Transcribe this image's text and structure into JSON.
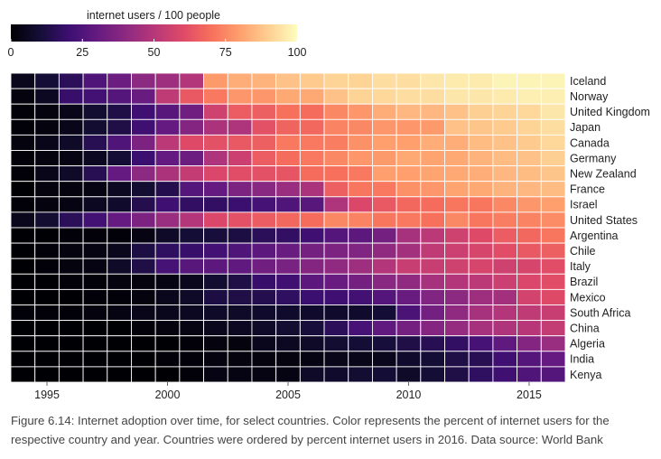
{
  "chart_data": {
    "type": "heatmap",
    "title": "",
    "xlabel": "",
    "ylabel": "",
    "years": [
      1994,
      1995,
      1996,
      1997,
      1998,
      1999,
      2000,
      2001,
      2002,
      2003,
      2004,
      2005,
      2006,
      2007,
      2008,
      2009,
      2010,
      2011,
      2012,
      2013,
      2014,
      2015,
      2016
    ],
    "x_ticks": [
      1995,
      2000,
      2005,
      2010,
      2015
    ],
    "color_scale": {
      "title": "internet users / 100 people",
      "min": 0,
      "max": 100,
      "ticks": [
        0,
        25,
        50,
        75,
        100
      ],
      "palette": "magma"
    },
    "rows": [
      {
        "country": "Iceland",
        "values": [
          5,
          10,
          16,
          25,
          32,
          40,
          44,
          49,
          79,
          83,
          84,
          87,
          89,
          91,
          91,
          93,
          93,
          95,
          96,
          96,
          98,
          98,
          98
        ]
      },
      {
        "country": "Norway",
        "values": [
          2,
          6,
          19,
          22,
          26,
          31,
          52,
          64,
          72,
          78,
          78,
          82,
          82,
          87,
          91,
          92,
          93,
          93,
          95,
          95,
          96,
          97,
          97
        ]
      },
      {
        "country": "United Kingdom",
        "values": [
          1,
          2,
          4,
          9,
          13,
          21,
          27,
          33,
          56,
          65,
          66,
          70,
          69,
          75,
          78,
          83,
          85,
          85,
          87,
          90,
          91,
          92,
          95
        ]
      },
      {
        "country": "Japan",
        "values": [
          1,
          2,
          4,
          9,
          13,
          21,
          30,
          38,
          47,
          48,
          62,
          67,
          68,
          74,
          75,
          78,
          78,
          79,
          87,
          88,
          89,
          91,
          93
        ]
      },
      {
        "country": "Canada",
        "values": [
          2,
          4,
          7,
          15,
          25,
          36,
          51,
          60,
          62,
          64,
          66,
          72,
          72,
          73,
          77,
          80,
          80,
          83,
          83,
          86,
          87,
          89,
          92
        ]
      },
      {
        "country": "Germany",
        "values": [
          1,
          2,
          3,
          6,
          10,
          20,
          30,
          32,
          48,
          55,
          65,
          69,
          72,
          75,
          78,
          79,
          82,
          81,
          82,
          84,
          86,
          87,
          90
        ]
      },
      {
        "country": "New Zealand",
        "values": [
          1,
          4,
          7,
          15,
          30,
          40,
          47,
          53,
          59,
          61,
          62,
          63,
          69,
          70,
          72,
          80,
          80,
          81,
          82,
          83,
          85,
          86,
          88
        ]
      },
      {
        "country": "France",
        "values": [
          0,
          2,
          2,
          3,
          6,
          9,
          14,
          26,
          30,
          36,
          39,
          43,
          47,
          66,
          71,
          72,
          77,
          78,
          81,
          82,
          84,
          85,
          86
        ]
      },
      {
        "country": "Israel",
        "values": [
          1,
          2,
          3,
          6,
          8,
          14,
          21,
          18,
          18,
          20,
          23,
          25,
          27,
          48,
          59,
          64,
          68,
          69,
          71,
          71,
          75,
          78,
          80
        ]
      },
      {
        "country": "United States",
        "values": [
          5,
          9,
          16,
          22,
          30,
          36,
          43,
          49,
          59,
          62,
          65,
          68,
          69,
          75,
          74,
          71,
          72,
          70,
          75,
          71,
          73,
          74,
          76
        ]
      },
      {
        "country": "Argentina",
        "values": [
          0,
          0,
          1,
          1,
          1,
          3,
          7,
          10,
          11,
          12,
          16,
          18,
          21,
          26,
          28,
          34,
          46,
          51,
          56,
          60,
          65,
          68,
          71
        ]
      },
      {
        "country": "Chile",
        "values": [
          0,
          1,
          2,
          3,
          5,
          12,
          17,
          19,
          22,
          25,
          28,
          31,
          34,
          36,
          37,
          41,
          45,
          52,
          55,
          58,
          61,
          64,
          66
        ]
      },
      {
        "country": "Italy",
        "values": [
          0,
          1,
          2,
          3,
          7,
          13,
          23,
          27,
          28,
          29,
          33,
          35,
          38,
          41,
          44,
          49,
          54,
          54,
          56,
          58,
          56,
          58,
          61
        ]
      },
      {
        "country": "Brazil",
        "values": [
          0,
          0,
          1,
          1,
          2,
          2,
          3,
          5,
          9,
          13,
          19,
          21,
          28,
          31,
          34,
          39,
          41,
          46,
          49,
          51,
          55,
          59,
          61
        ]
      },
      {
        "country": "Mexico",
        "values": [
          0,
          0,
          0,
          1,
          1,
          2,
          5,
          7,
          12,
          13,
          14,
          17,
          20,
          21,
          22,
          26,
          31,
          37,
          40,
          44,
          45,
          57,
          60
        ]
      },
      {
        "country": "South Africa",
        "values": [
          1,
          1,
          1,
          2,
          3,
          4,
          5,
          6,
          7,
          7,
          8,
          8,
          8,
          8,
          8,
          10,
          24,
          34,
          41,
          46,
          49,
          52,
          54
        ]
      },
      {
        "country": "China",
        "values": [
          0,
          0,
          0,
          0,
          0,
          1,
          2,
          3,
          5,
          6,
          7,
          9,
          11,
          16,
          23,
          29,
          34,
          38,
          42,
          46,
          48,
          50,
          53
        ]
      },
      {
        "country": "Algeria",
        "values": [
          0,
          0,
          0,
          0,
          0,
          0,
          0,
          1,
          2,
          2,
          5,
          6,
          7,
          9,
          10,
          11,
          13,
          15,
          18,
          23,
          29,
          38,
          43
        ]
      },
      {
        "country": "India",
        "values": [
          0,
          0,
          0,
          0,
          0,
          0,
          1,
          1,
          2,
          2,
          2,
          2,
          3,
          4,
          4,
          5,
          8,
          10,
          13,
          15,
          21,
          26,
          30
        ]
      },
      {
        "country": "Kenya",
        "values": [
          0,
          0,
          0,
          0,
          0,
          0,
          0,
          1,
          3,
          3,
          3,
          3,
          7,
          8,
          9,
          10,
          7,
          10,
          13,
          17,
          21,
          25,
          26
        ]
      }
    ]
  },
  "caption": {
    "text": "Figure 6.14: Internet adoption over time, for select countries. Color represents the percent of internet users for the respective country and year. Countries were ordered by percent internet users in 2016. Data source: World Bank"
  }
}
